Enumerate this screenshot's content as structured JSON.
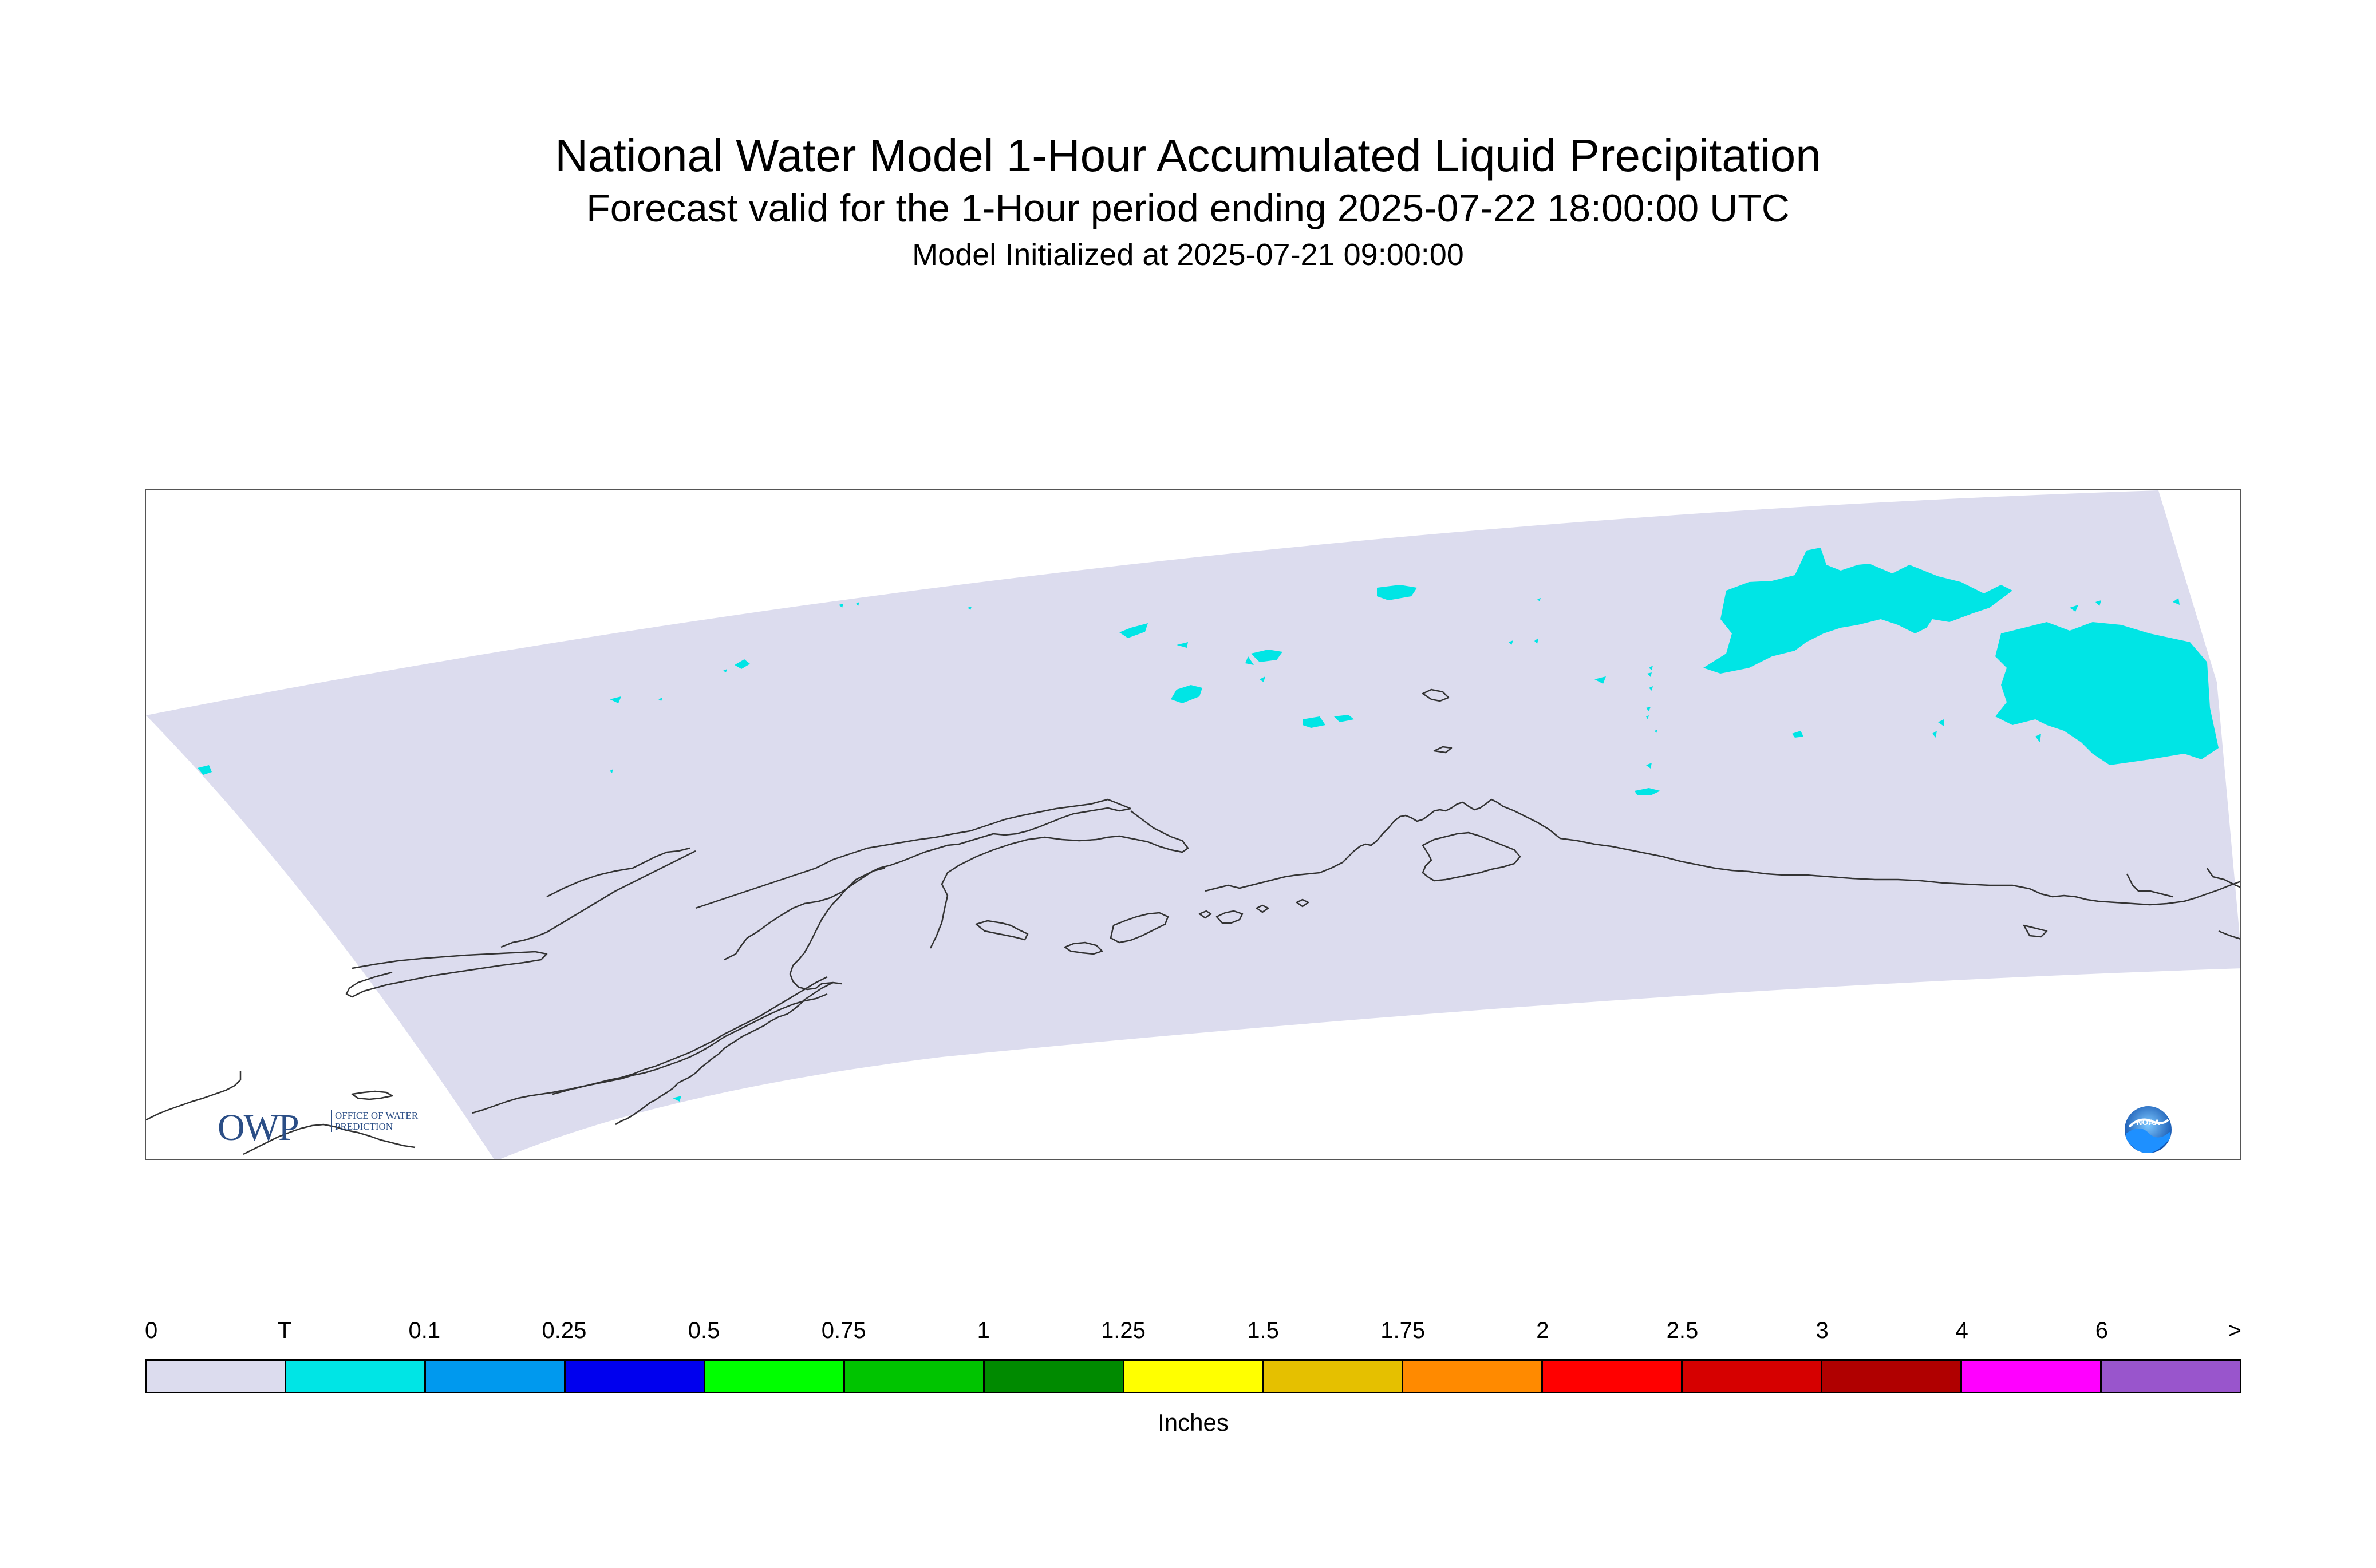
{
  "titles": {
    "main": "National Water Model 1-Hour Accumulated Liquid Precipitation",
    "sub": "Forecast valid for the 1-Hour period ending 2025-07-22 18:00:00 UTC",
    "init": "Model Initialized at 2025-07-21 09:00:00"
  },
  "logos": {
    "owp_big": "OWP",
    "owp_small": "OFFICE OF WATER PREDICTION",
    "noaa": "NOAA"
  },
  "legend": {
    "units": "Inches",
    "tick_labels": [
      "0",
      "T",
      "0.1",
      "0.25",
      "0.5",
      "0.75",
      "1",
      "1.25",
      "1.5",
      "1.75",
      "2",
      "2.5",
      "3",
      "4",
      "6",
      ">"
    ],
    "colors": [
      "#dcdcee",
      "#00e5e5",
      "#0099ee",
      "#0000ee",
      "#00ff00",
      "#00c400",
      "#008a00",
      "#ffff00",
      "#e5c000",
      "#ff8a00",
      "#ff0000",
      "#d60000",
      "#b00000",
      "#ff00ff",
      "#9955cc"
    ]
  },
  "map": {
    "domain_color": "#dcdcee",
    "precip_color": "#00e5e5",
    "coastline_color": "#333333"
  }
}
